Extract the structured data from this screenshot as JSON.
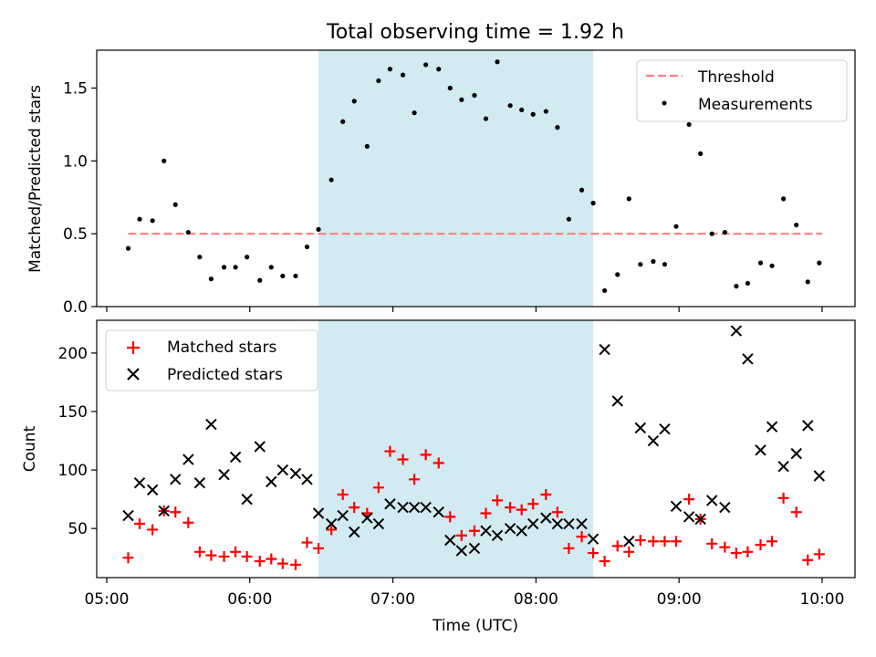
{
  "title": "Total observing time = 1.92 h",
  "xlabel": "Time (UTC)",
  "x_ticks": [
    "05:00",
    "06:00",
    "07:00",
    "08:00",
    "09:00",
    "10:00"
  ],
  "x_tick_values": [
    5.0,
    6.0,
    7.0,
    8.0,
    9.0,
    10.0
  ],
  "x_range": [
    4.93,
    10.23
  ],
  "highlight_span": [
    6.48,
    8.4
  ],
  "colors": {
    "highlight": "#add8e6",
    "threshold": "#ff7f7f",
    "measurements": "#000000",
    "matched": "#ff0000",
    "predicted": "#000000"
  },
  "chart_data": [
    {
      "type": "scatter",
      "ylabel": "Matched/Predicted stars",
      "ylim": [
        0,
        1.76
      ],
      "y_ticks": [
        0.0,
        0.5,
        1.0,
        1.5
      ],
      "y_tick_labels": [
        "0.0",
        "0.5",
        "1.0",
        "1.5"
      ],
      "legend_position": "top-right",
      "threshold": {
        "name": "Threshold",
        "value": 0.5,
        "x_range": [
          5.15,
          10.0
        ]
      },
      "series": [
        {
          "name": "Measurements",
          "x": [
            5.15,
            5.23,
            5.32,
            5.4,
            5.48,
            5.57,
            5.65,
            5.73,
            5.82,
            5.9,
            5.98,
            6.07,
            6.15,
            6.23,
            6.32,
            6.4,
            6.48,
            6.57,
            6.65,
            6.73,
            6.82,
            6.9,
            6.98,
            7.07,
            7.15,
            7.23,
            7.32,
            7.4,
            7.48,
            7.57,
            7.65,
            7.73,
            7.82,
            7.9,
            7.98,
            8.07,
            8.15,
            8.23,
            8.32,
            8.4,
            8.48,
            8.57,
            8.65,
            8.73,
            8.82,
            8.9,
            8.98,
            9.07,
            9.15,
            9.23,
            9.32,
            9.4,
            9.48,
            9.57,
            9.65,
            9.73,
            9.82,
            9.9,
            9.98
          ],
          "y": [
            0.4,
            0.6,
            0.59,
            1.0,
            0.7,
            0.51,
            0.34,
            0.19,
            0.27,
            0.27,
            0.34,
            0.18,
            0.27,
            0.21,
            0.21,
            0.41,
            0.53,
            0.87,
            1.27,
            1.41,
            1.1,
            1.55,
            1.63,
            1.59,
            1.33,
            1.66,
            1.63,
            1.5,
            1.42,
            1.45,
            1.29,
            1.68,
            1.38,
            1.35,
            1.32,
            1.34,
            1.23,
            0.6,
            0.8,
            0.71,
            0.11,
            0.22,
            0.74,
            0.29,
            0.31,
            0.29,
            0.55,
            1.25,
            1.05,
            0.5,
            0.51,
            0.14,
            0.16,
            0.3,
            0.28,
            0.74,
            0.56,
            0.17,
            0.3
          ]
        }
      ]
    },
    {
      "type": "scatter",
      "ylabel": "Count",
      "ylim": [
        8,
        228
      ],
      "y_ticks": [
        50,
        100,
        150,
        200
      ],
      "y_tick_labels": [
        "50",
        "100",
        "150",
        "200"
      ],
      "legend_position": "top-left",
      "series": [
        {
          "name": "Matched stars",
          "marker": "+",
          "x": [
            5.15,
            5.23,
            5.32,
            5.4,
            5.48,
            5.57,
            5.65,
            5.73,
            5.82,
            5.9,
            5.98,
            6.07,
            6.15,
            6.23,
            6.32,
            6.4,
            6.48,
            6.57,
            6.65,
            6.73,
            6.82,
            6.9,
            6.98,
            7.07,
            7.15,
            7.23,
            7.32,
            7.4,
            7.48,
            7.57,
            7.65,
            7.73,
            7.82,
            7.9,
            7.98,
            8.07,
            8.15,
            8.23,
            8.32,
            8.4,
            8.48,
            8.57,
            8.65,
            8.73,
            8.82,
            8.9,
            8.98,
            9.07,
            9.15,
            9.23,
            9.32,
            9.4,
            9.48,
            9.57,
            9.65,
            9.73,
            9.82,
            9.9,
            9.98
          ],
          "y": [
            25,
            54,
            49,
            65,
            64,
            55,
            30,
            27,
            26,
            30,
            26,
            22,
            24,
            20,
            19,
            38,
            33,
            49,
            79,
            68,
            63,
            85,
            116,
            109,
            92,
            113,
            106,
            60,
            44,
            48,
            63,
            74,
            68,
            66,
            71,
            79,
            64,
            33,
            43,
            29,
            22,
            35,
            30,
            40,
            39,
            39,
            39,
            75,
            58,
            37,
            34,
            29,
            30,
            36,
            39,
            76,
            64,
            23,
            28
          ]
        },
        {
          "name": "Predicted stars",
          "marker": "x",
          "x": [
            5.15,
            5.23,
            5.32,
            5.4,
            5.48,
            5.57,
            5.65,
            5.73,
            5.82,
            5.9,
            5.98,
            6.07,
            6.15,
            6.23,
            6.32,
            6.4,
            6.48,
            6.57,
            6.65,
            6.73,
            6.82,
            6.9,
            6.98,
            7.07,
            7.15,
            7.23,
            7.32,
            7.4,
            7.48,
            7.57,
            7.65,
            7.73,
            7.82,
            7.9,
            7.98,
            8.07,
            8.15,
            8.23,
            8.32,
            8.4,
            8.48,
            8.57,
            8.65,
            8.73,
            8.82,
            8.9,
            8.98,
            9.07,
            9.15,
            9.23,
            9.32,
            9.4,
            9.48,
            9.57,
            9.65,
            9.73,
            9.82,
            9.9,
            9.98
          ],
          "y": [
            61,
            89,
            83,
            65,
            92,
            109,
            89,
            139,
            96,
            111,
            75,
            120,
            90,
            100,
            97,
            92,
            63,
            54,
            61,
            47,
            59,
            54,
            71,
            68,
            68,
            68,
            64,
            40,
            31,
            33,
            48,
            44,
            50,
            48,
            54,
            59,
            54,
            54,
            54,
            41,
            203,
            159,
            39,
            136,
            125,
            135,
            69,
            60,
            58,
            74,
            68,
            219,
            195,
            117,
            137,
            103,
            114,
            138,
            95
          ]
        }
      ]
    }
  ]
}
